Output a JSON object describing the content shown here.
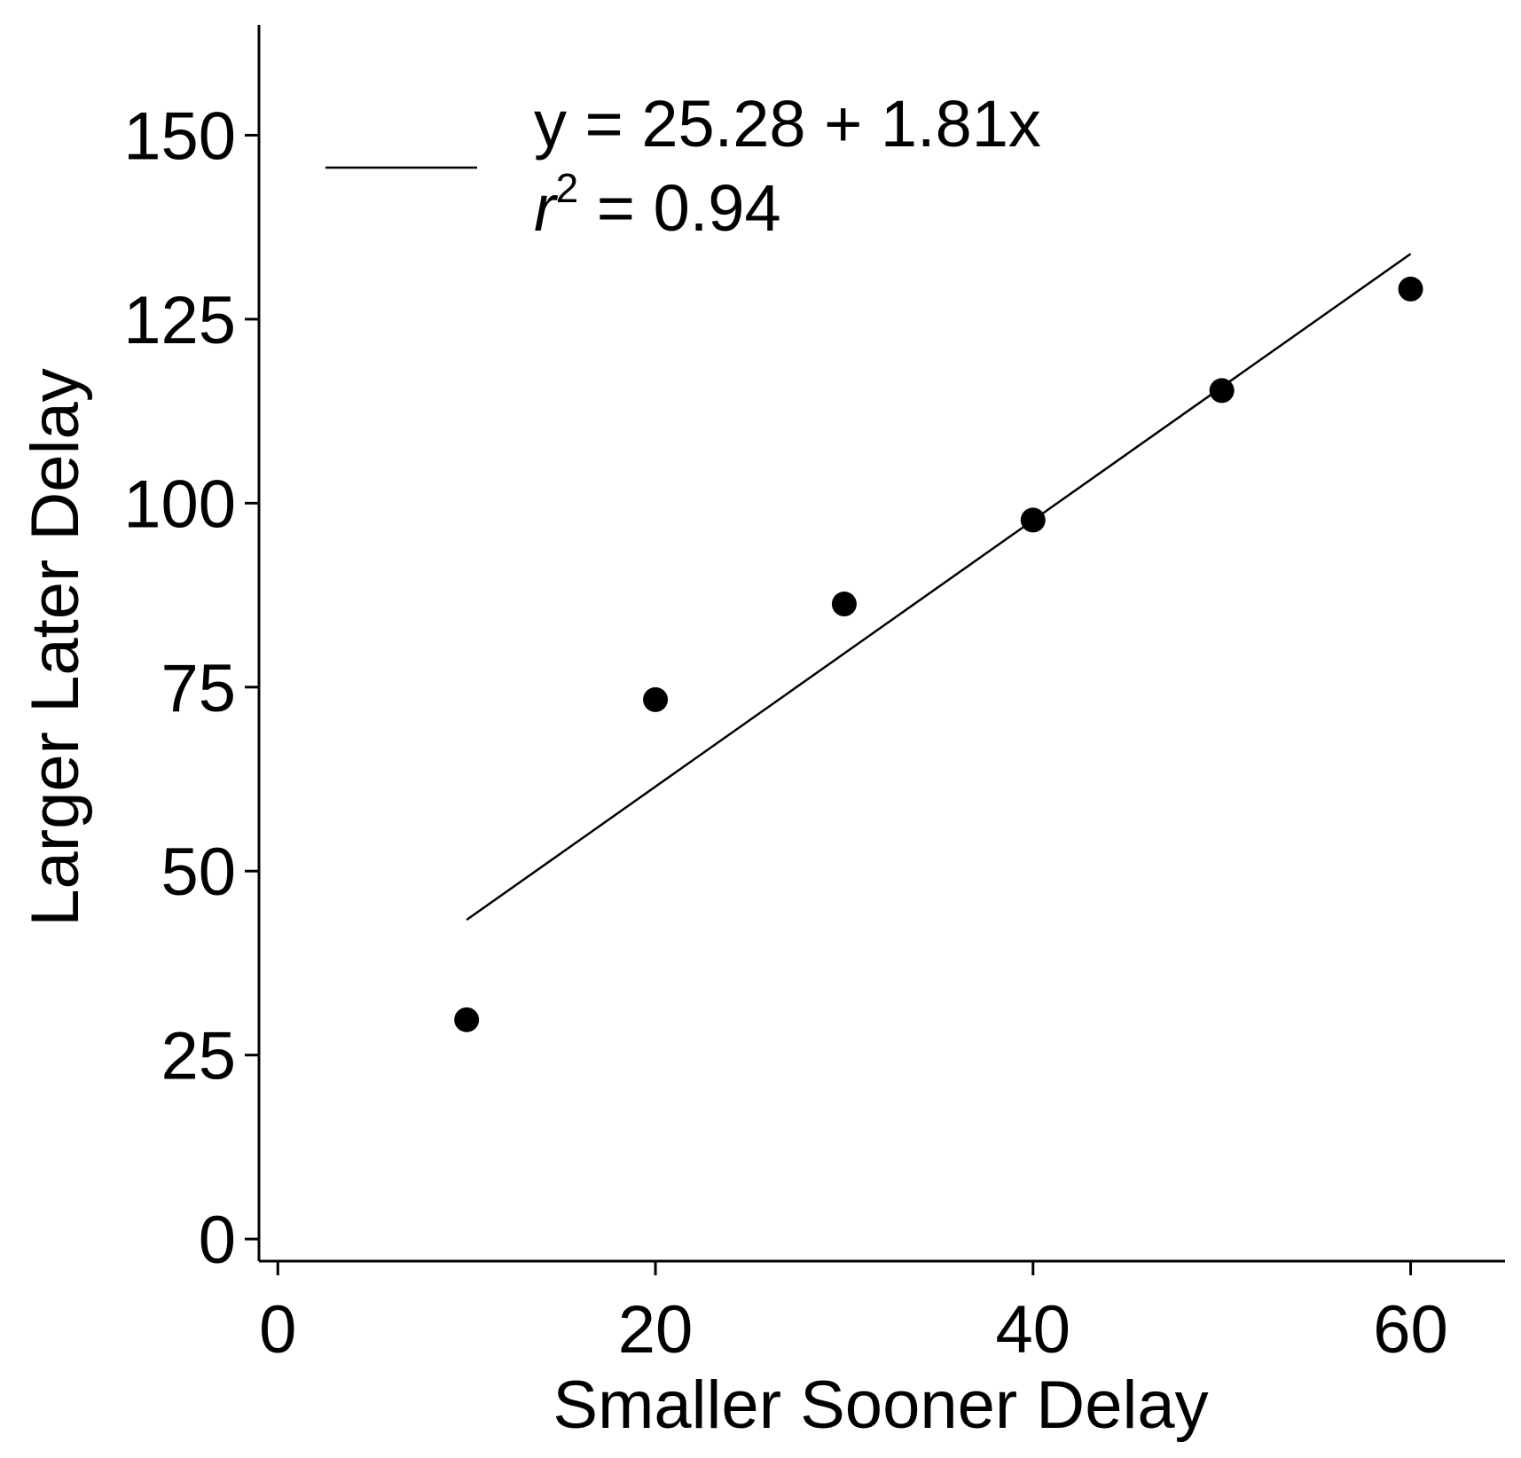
{
  "chart_data": {
    "type": "scatter",
    "title": "",
    "xlabel": "Smaller Sooner Delay",
    "ylabel": "Larger Later Delay",
    "xlim": [
      -1,
      65
    ],
    "ylim": [
      -3,
      165
    ],
    "xticks": [
      0,
      20,
      40,
      60
    ],
    "yticks": [
      0,
      25,
      50,
      75,
      100,
      125,
      150
    ],
    "grid": false,
    "points": [
      {
        "x": 10,
        "y": 29.8
      },
      {
        "x": 20,
        "y": 73.3
      },
      {
        "x": 30,
        "y": 86.3
      },
      {
        "x": 40,
        "y": 97.7
      },
      {
        "x": 50,
        "y": 115.3
      },
      {
        "x": 60,
        "y": 129.1
      }
    ],
    "fit": {
      "intercept": 25.28,
      "slope": 1.81,
      "x_range": [
        10,
        60
      ],
      "equation_label": "y = 25.28 + 1.81x",
      "r2_symbol": "r",
      "r2_exponent": "2",
      "r2_value_text": " = 0.94"
    },
    "legend_position": "top-left",
    "colors": {
      "points": "#000000",
      "line": "#000000"
    }
  }
}
